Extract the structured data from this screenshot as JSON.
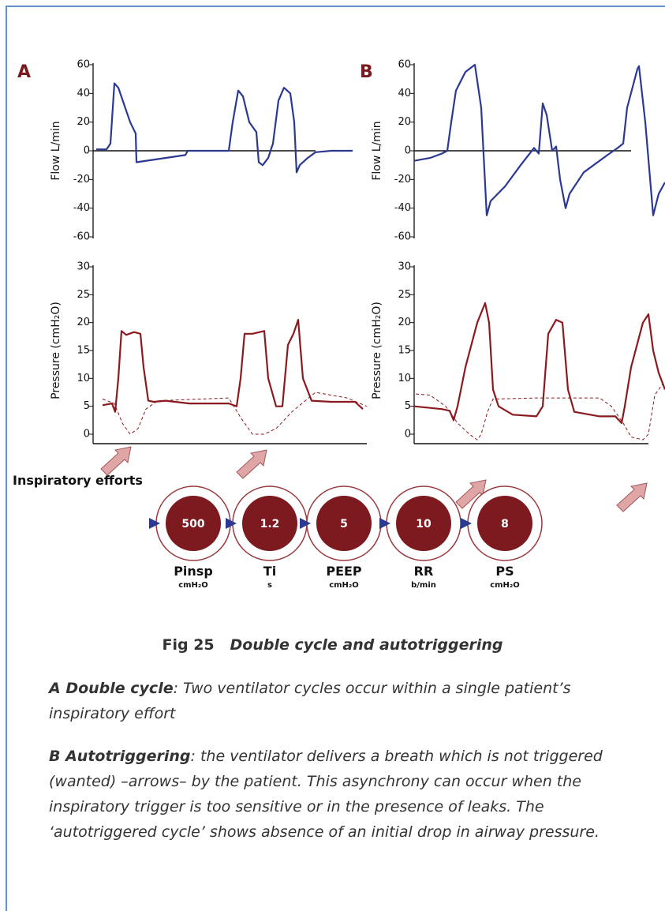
{
  "chart_data": [
    {
      "type": "line",
      "ylabel": "Flow L/min",
      "ylim": [
        -60,
        60
      ],
      "yticks": [
        60,
        40,
        20,
        0,
        -20,
        -40,
        -60
      ],
      "xlim": [
        0,
        342
      ],
      "series": [
        {
          "color": "#2b3990",
          "x": [
            4,
            17,
            22,
            27,
            32,
            47,
            54,
            55,
            117,
            120,
            172,
            177,
            184,
            190,
            198,
            207,
            210,
            215,
            222,
            228,
            235,
            242,
            250,
            255,
            258,
            262,
            272,
            282,
            302,
            329
          ],
          "values": [
            1,
            1,
            5,
            47,
            44,
            20,
            12,
            -8,
            -3,
            0,
            0,
            20,
            42,
            38,
            20,
            13,
            -8,
            -10,
            -5,
            5,
            35,
            44,
            40,
            20,
            -15,
            -10,
            -5,
            -1,
            0,
            0
          ]
        }
      ]
    },
    {
      "type": "line",
      "ylabel": "Pressure (cmH₂O)",
      "ylim": [
        0,
        30
      ],
      "yticks": [
        30,
        25,
        20,
        15,
        10,
        5,
        0
      ],
      "xlim": [
        0,
        347
      ],
      "series": [
        {
          "color": "#8b1a1f",
          "style": "solid",
          "x": [
            12,
            24,
            28,
            32,
            36,
            42,
            52,
            60,
            64,
            70,
            77,
            92,
            122,
            172,
            182,
            187,
            192,
            202,
            217,
            222,
            232,
            240,
            247,
            254,
            260,
            266,
            277,
            302,
            332,
            342
          ],
          "values": [
            5.2,
            5.5,
            4,
            10,
            18.5,
            17.8,
            18.3,
            18,
            12,
            6,
            5.8,
            6,
            5.5,
            5.5,
            5,
            10,
            18,
            18,
            18.5,
            10,
            5,
            5,
            16,
            18,
            20.5,
            10,
            6,
            5.8,
            5.8,
            4.5
          ]
        },
        {
          "color": "#8b1a1f",
          "style": "dashed",
          "x": [
            12,
            27,
            37,
            47,
            57,
            67,
            82,
            172,
            187,
            202,
            217,
            232,
            252,
            282,
            322,
            347
          ],
          "values": [
            6.3,
            5.5,
            2,
            0,
            1,
            4.5,
            6,
            6.5,
            3,
            0,
            0,
            1,
            4,
            7.5,
            6.5,
            5
          ]
        }
      ]
    },
    {
      "type": "line",
      "ylabel": "Flow L/min",
      "ylim": [
        -60,
        60
      ],
      "yticks": [
        60,
        40,
        20,
        0,
        -20,
        -40,
        -60
      ],
      "xlim": [
        0,
        318
      ],
      "series": [
        {
          "color": "#2b3990",
          "x": [
            0,
            20,
            35,
            42,
            47,
            53,
            65,
            77,
            85,
            92,
            97,
            115,
            135,
            152,
            158,
            163,
            168,
            175,
            180,
            185,
            192,
            197,
            215,
            245,
            258,
            265,
            270,
            283,
            285,
            293,
            303,
            310,
            318
          ],
          "values": [
            -7,
            -5,
            -2,
            0,
            20,
            42,
            55,
            60,
            30,
            -45,
            -35,
            -25,
            -10,
            2,
            -2,
            33,
            25,
            0,
            3,
            -20,
            -40,
            -30,
            -15,
            -3,
            2,
            5,
            30,
            57,
            59,
            20,
            -45,
            -30,
            -22
          ]
        }
      ]
    },
    {
      "type": "line",
      "ylabel": "Pressure (cmH₂O)",
      "ylim": [
        0,
        30
      ],
      "yticks": [
        30,
        25,
        20,
        15,
        10,
        5,
        0
      ],
      "xlim": [
        0,
        318
      ],
      "series": [
        {
          "color": "#8b1a1f",
          "style": "solid",
          "x": [
            0,
            35,
            45,
            50,
            55,
            65,
            80,
            90,
            95,
            100,
            107,
            125,
            155,
            163,
            170,
            180,
            188,
            195,
            203,
            235,
            255,
            263,
            267,
            275,
            290,
            297,
            303,
            310,
            318
          ],
          "values": [
            5,
            4.5,
            4.2,
            2.5,
            5,
            12,
            20,
            23.5,
            20,
            8,
            5,
            3.5,
            3.2,
            5,
            18,
            20.5,
            20,
            8,
            4,
            3.2,
            3.2,
            2,
            5,
            12,
            20,
            21.5,
            15,
            11,
            8
          ]
        },
        {
          "color": "#8b1a1f",
          "style": "dashed",
          "x": [
            2,
            20,
            40,
            55,
            70,
            80,
            85,
            93,
            100,
            155,
            235,
            250,
            265,
            275,
            290,
            297,
            305,
            315
          ],
          "values": [
            7.2,
            7,
            5,
            2,
            0,
            -1,
            0,
            4,
            6.3,
            6.5,
            6.5,
            5,
            2,
            -0.5,
            -1,
            0,
            7,
            9
          ]
        }
      ]
    }
  ],
  "panels": [
    "A",
    "B"
  ],
  "annotation": "Inspiratory efforts",
  "settings": [
    {
      "value": 500,
      "label": "Pinsp",
      "unit": "cmH₂O"
    },
    {
      "value": 1.2,
      "label": "Ti",
      "unit": "s"
    },
    {
      "value": 5,
      "label": "PEEP",
      "unit": "cmH₂O"
    },
    {
      "value": 10,
      "label": "RR",
      "unit": "b/min"
    },
    {
      "value": 8,
      "label": "PS",
      "unit": "cmH₂O"
    }
  ],
  "caption": {
    "number": "Fig 25",
    "title": "Double cycle and autotriggering",
    "paragraphs": [
      {
        "lead": "A  Double cycle",
        "text": ": Two ventilator cycles occur within a single patient’s inspiratory effort"
      },
      {
        "lead": "B  Autotriggering",
        "text": ": the ventilator delivers a breath which is not triggered (wanted) –arrows– by the patient. This asynchrony can occur when the inspiratory trigger is too sensitive or in the presence of leaks. The ‘autotriggered cycle’ shows absence of an initial drop in airway pressure."
      }
    ]
  }
}
